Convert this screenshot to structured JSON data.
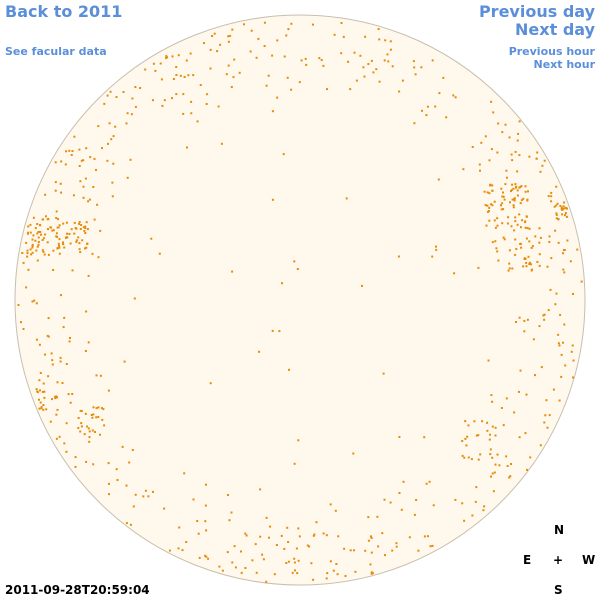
{
  "nav": {
    "back": "Back to 2011",
    "facular": "See facular data",
    "previous_day": "Previous day",
    "next_day": "Next day",
    "previous_hour": "Previous hour",
    "next_hour": "Next hour"
  },
  "timestamp": "2011-09-28T20:59:04",
  "compass": {
    "north": "N",
    "east": "E",
    "center": "+",
    "west": "W",
    "south": "S"
  },
  "colors": {
    "disk_fill": "#fef9ec",
    "disk_outline": "#c8bfae",
    "facula": "#e88a0c",
    "link": "#5b8fd9"
  }
}
